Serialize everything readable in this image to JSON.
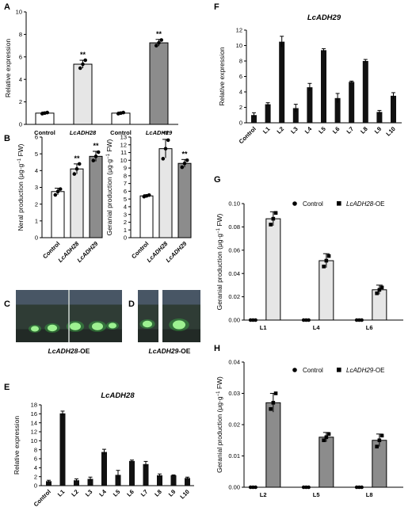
{
  "colors": {
    "control": "#ffffff",
    "adh28": "#e6e6e6",
    "adh29": "#8c8c8c",
    "black": "#111111",
    "photo_bg": "#2f3c35",
    "photo_glow": "#3fd04b"
  },
  "chart_data": [
    {
      "panel": "A",
      "type": "bar",
      "title": "",
      "ylabel": "Relative expression",
      "ylim": [
        0,
        10
      ],
      "yticks": [
        0,
        2,
        4,
        6,
        8,
        10
      ],
      "categories": [
        "Control",
        "LcADH28",
        "Control",
        "LcADH29"
      ],
      "italic": [
        false,
        true,
        false,
        true
      ],
      "values": [
        1.0,
        5.35,
        1.0,
        7.25
      ],
      "errors": [
        0.1,
        0.35,
        0.1,
        0.3
      ],
      "points": [
        [
          0.95,
          1.0,
          1.05
        ],
        [
          5.0,
          5.35,
          5.7
        ],
        [
          0.95,
          1.0,
          1.05
        ],
        [
          7.0,
          7.25,
          7.5
        ]
      ],
      "fills": [
        "control",
        "adh28",
        "control",
        "adh29"
      ],
      "annotations": [
        "",
        "**",
        "",
        "**"
      ]
    },
    {
      "panel": "B",
      "type": "bar",
      "title": "",
      "ylabel_parts": [
        "Neral production (μg·g",
        "−1",
        " FW)"
      ],
      "ylim": [
        0,
        6
      ],
      "yticks": [
        0,
        1,
        2,
        3,
        4,
        5,
        6
      ],
      "categories": [
        "Control",
        "LcADH28",
        "LcADH29"
      ],
      "italic": [
        false,
        true,
        true
      ],
      "values": [
        2.75,
        4.1,
        4.85
      ],
      "errors": [
        0.2,
        0.3,
        0.3
      ],
      "points": [
        [
          2.55,
          2.75,
          2.9
        ],
        [
          3.8,
          4.1,
          4.4
        ],
        [
          4.6,
          4.85,
          5.1
        ]
      ],
      "fills": [
        "control",
        "adh28",
        "adh29"
      ],
      "annotations": [
        "",
        "**",
        "**"
      ]
    },
    {
      "panel": "B2",
      "type": "bar",
      "title": "",
      "ylabel_parts": [
        "Geranial production (μg·g",
        "−1",
        " FW)"
      ],
      "ylim": [
        0,
        13
      ],
      "yticks": [
        0,
        1,
        2,
        3,
        4,
        5,
        6,
        7,
        8,
        9,
        10,
        11,
        12,
        13
      ],
      "categories": [
        "Control",
        "LcADH28",
        "LcADH29"
      ],
      "italic": [
        false,
        true,
        true
      ],
      "values": [
        5.4,
        11.5,
        9.6
      ],
      "errors": [
        0.15,
        1.2,
        0.5
      ],
      "points": [
        [
          5.3,
          5.4,
          5.5
        ],
        [
          10.2,
          11.5,
          12.6
        ],
        [
          9.1,
          9.6,
          10.0
        ]
      ],
      "fills": [
        "control",
        "adh28",
        "adh29"
      ],
      "annotations": [
        "",
        "**",
        "**"
      ]
    },
    {
      "panel": "E",
      "type": "bar",
      "title": "LcADH28",
      "ylabel": "Relative expression",
      "ylim": [
        0,
        18
      ],
      "yticks": [
        0,
        2,
        4,
        6,
        8,
        10,
        12,
        14,
        16,
        18
      ],
      "categories": [
        "Control",
        "L1",
        "L2",
        "L3",
        "L4",
        "L5",
        "L6",
        "L7",
        "L8",
        "L9",
        "L10"
      ],
      "values": [
        1.0,
        16.1,
        1.2,
        1.5,
        7.5,
        2.4,
        5.5,
        4.8,
        2.3,
        2.3,
        1.7
      ],
      "errors": [
        0.2,
        0.5,
        0.3,
        0.4,
        0.6,
        1.0,
        0.2,
        0.6,
        0.3,
        0.1,
        0.2
      ],
      "fills": [
        "black",
        "black",
        "black",
        "black",
        "black",
        "black",
        "black",
        "black",
        "black",
        "black",
        "black"
      ]
    },
    {
      "panel": "F",
      "type": "bar",
      "title": "LcADH29",
      "ylabel": "Relative expression",
      "ylim": [
        0,
        12
      ],
      "yticks": [
        0,
        2,
        4,
        6,
        8,
        10,
        12
      ],
      "categories": [
        "Control",
        "L1",
        "L2",
        "L3",
        "L4",
        "L5",
        "L6",
        "L7",
        "L8",
        "L9",
        "L10"
      ],
      "values": [
        1.0,
        2.4,
        10.5,
        1.9,
        4.6,
        9.4,
        3.2,
        5.3,
        8.0,
        1.4,
        3.5
      ],
      "errors": [
        0.3,
        0.2,
        0.7,
        0.5,
        0.5,
        0.2,
        0.6,
        0.1,
        0.2,
        0.2,
        0.4
      ],
      "fills": [
        "black",
        "black",
        "black",
        "black",
        "black",
        "black",
        "black",
        "black",
        "black",
        "black",
        "black"
      ]
    },
    {
      "panel": "G",
      "type": "bar",
      "title": "",
      "ylabel_parts": [
        "Geranial production (μg·g",
        "−1",
        " FW)"
      ],
      "ylim": [
        0,
        0.1
      ],
      "yticks": [
        0,
        0.02,
        0.04,
        0.06,
        0.08,
        0.1
      ],
      "ytick_labels": [
        "0.00",
        "0.02",
        "0.04",
        "0.06",
        "0.08",
        "0.10"
      ],
      "categories": [
        "L1",
        "L4",
        "L6"
      ],
      "legend": [
        {
          "marker": "circle",
          "label": "Control"
        },
        {
          "marker": "square",
          "label_parts": [
            "LcADH28",
            "-OE"
          ]
        }
      ],
      "series": [
        {
          "key": "control",
          "values": [
            0.0,
            0.0,
            0.0
          ],
          "points": [
            [
              0,
              0,
              0
            ],
            [
              0,
              0,
              0
            ],
            [
              0,
              0,
              0
            ]
          ]
        },
        {
          "key": "adh28",
          "values": [
            0.087,
            0.051,
            0.026
          ],
          "errors": [
            0.006,
            0.006,
            0.004
          ],
          "points": [
            [
              0.082,
              0.087,
              0.092
            ],
            [
              0.046,
              0.051,
              0.055
            ],
            [
              0.023,
              0.026,
              0.028
            ]
          ]
        }
      ]
    },
    {
      "panel": "H",
      "type": "bar",
      "title": "",
      "ylabel_parts": [
        "Geranial production (μg·g",
        "−1",
        " FW)"
      ],
      "ylim": [
        0,
        0.04
      ],
      "yticks": [
        0,
        0.01,
        0.02,
        0.03,
        0.04
      ],
      "ytick_labels": [
        "0.00",
        "0.01",
        "0.02",
        "0.03",
        "0.04"
      ],
      "categories": [
        "L2",
        "L5",
        "L8"
      ],
      "legend": [
        {
          "marker": "circle",
          "label": "Control"
        },
        {
          "marker": "square",
          "label_parts": [
            "LcADH29",
            "-OE"
          ]
        }
      ],
      "series": [
        {
          "key": "control",
          "values": [
            0.0,
            0.0,
            0.0
          ],
          "points": [
            [
              0,
              0,
              0
            ],
            [
              0,
              0,
              0
            ],
            [
              0,
              0,
              0
            ]
          ]
        },
        {
          "key": "adh29",
          "values": [
            0.027,
            0.016,
            0.015
          ],
          "errors": [
            0.003,
            0.0015,
            0.002
          ],
          "points": [
            [
              0.025,
              0.027,
              0.03
            ],
            [
              0.015,
              0.016,
              0.017
            ],
            [
              0.013,
              0.015,
              0.0165
            ]
          ]
        }
      ]
    }
  ],
  "photos": [
    {
      "panel": "C",
      "caption_parts": [
        "LcADH28",
        "-OE"
      ]
    },
    {
      "panel": "D",
      "caption_parts": [
        "LcADH29",
        "-OE"
      ]
    }
  ]
}
